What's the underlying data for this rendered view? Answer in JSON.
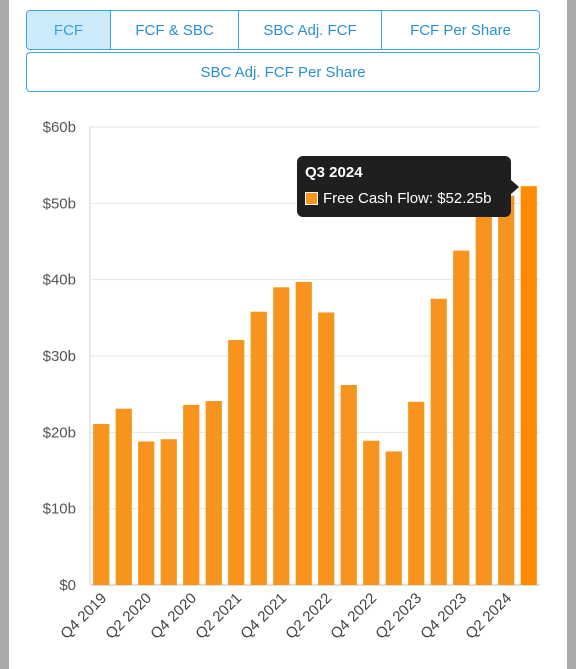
{
  "tabs": [
    {
      "label": "FCF",
      "active": true
    },
    {
      "label": "FCF & SBC",
      "active": false
    },
    {
      "label": "SBC Adj. FCF",
      "active": false
    },
    {
      "label": "FCF Per Share",
      "active": false
    }
  ],
  "tab_wide": {
    "label": "SBC Adj. FCF Per Share"
  },
  "tooltip": {
    "title": "Q3 2024",
    "line": "Free Cash Flow: $52.25b"
  },
  "colors": {
    "bar": "#f7941d",
    "bar_highlight": "#ff8a00",
    "tab_accent": "#3aa7e0",
    "active_tab_bg": "#cdeafb"
  },
  "chart_data": {
    "type": "bar",
    "categories": [
      "Q4 2019",
      "Q1 2020",
      "Q2 2020",
      "Q3 2020",
      "Q4 2020",
      "Q1 2021",
      "Q2 2021",
      "Q3 2021",
      "Q4 2021",
      "Q1 2022",
      "Q2 2022",
      "Q3 2022",
      "Q4 2022",
      "Q1 2023",
      "Q2 2023",
      "Q3 2023",
      "Q4 2023",
      "Q1 2024",
      "Q2 2024",
      "Q3 2024"
    ],
    "series": [
      {
        "values": [
          21.1,
          23.1,
          18.8,
          19.1,
          23.6,
          24.1,
          32.1,
          35.8,
          39.0,
          39.7,
          35.7,
          26.2,
          18.9,
          17.5,
          24.0,
          37.5,
          43.8,
          50.5,
          51.0,
          52.25
        ]
      }
    ],
    "x_tick_labels": [
      "Q4 2019",
      "Q2 2020",
      "Q4 2020",
      "Q2 2021",
      "Q4 2021",
      "Q2 2022",
      "Q4 2022",
      "Q2 2023",
      "Q4 2023",
      "Q2 2024"
    ],
    "y_ticks": [
      "$0",
      "$10b",
      "$20b",
      "$30b",
      "$40b",
      "$50b",
      "$60b"
    ],
    "ylim": [
      0,
      60
    ],
    "highlighted_index": 19,
    "grid": true,
    "legend": "none"
  }
}
